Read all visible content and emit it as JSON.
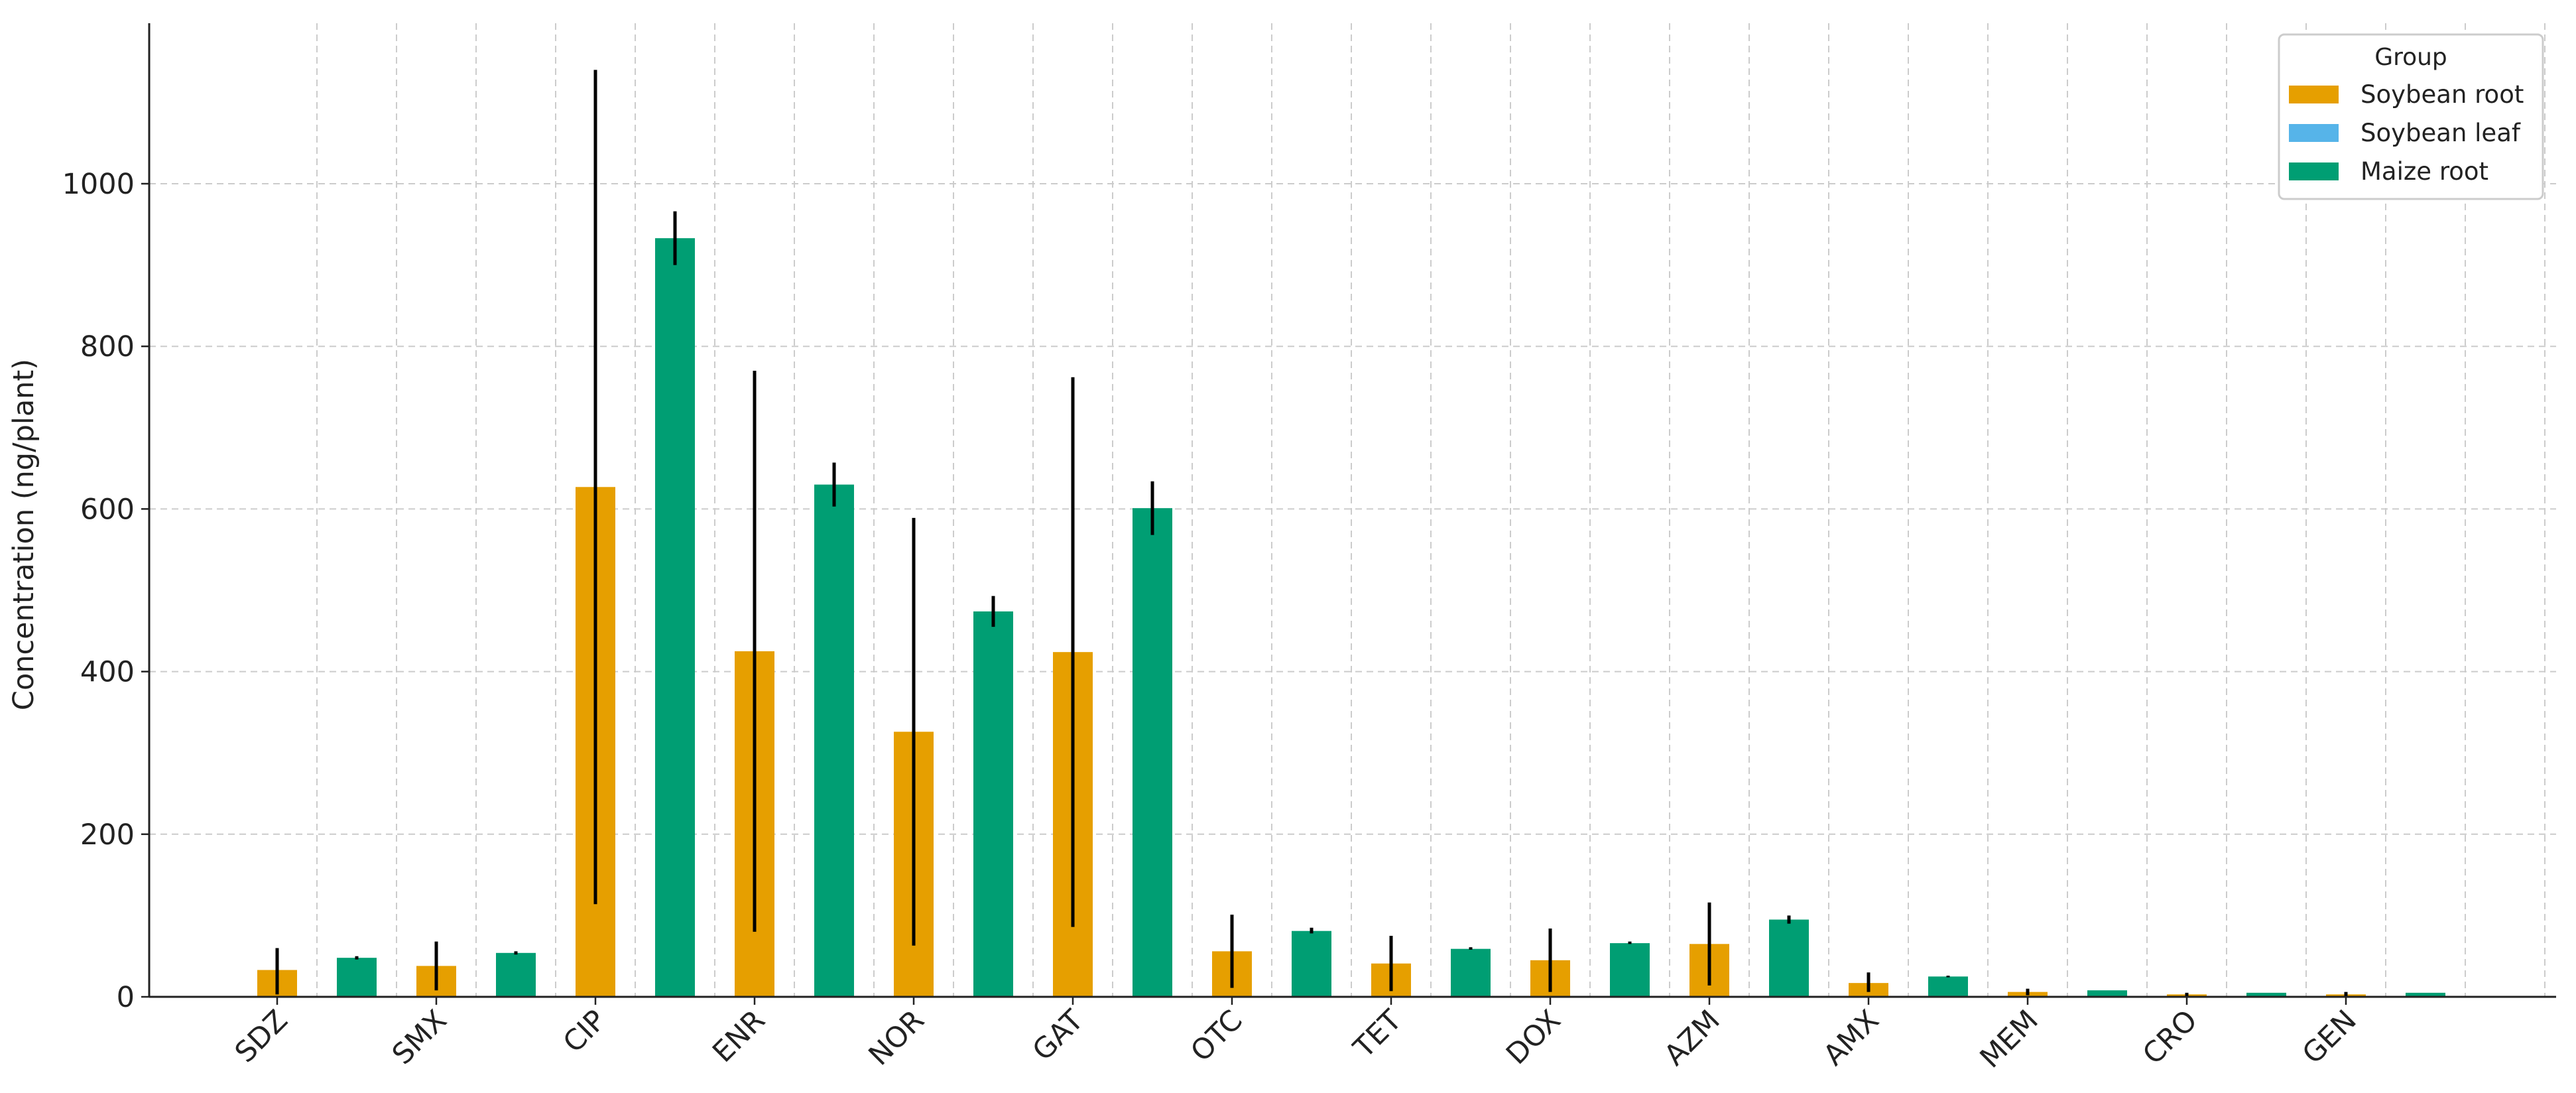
{
  "chart_data": {
    "type": "bar",
    "title": "",
    "xlabel": "",
    "ylabel": "Concentration (ng/plant)",
    "ylim": [
      0,
      1200
    ],
    "yticks": [
      0,
      200,
      400,
      600,
      800,
      1000
    ],
    "grid": true,
    "legend_position": "top-right",
    "legend_title": "Group",
    "series": [
      {
        "name": "Soybean root",
        "color": "#E69F00"
      },
      {
        "name": "Soybean leaf",
        "color": "#56B4E9"
      },
      {
        "name": "Maize root",
        "color": "#009E73"
      }
    ],
    "categories": [
      "SDZ",
      "SMX",
      "CIP",
      "ENR",
      "NOR",
      "GAT",
      "OTC",
      "TET",
      "DOX",
      "AZM",
      "AMX",
      "MEM",
      "CRO",
      "GEN"
    ],
    "bars": [
      {
        "series": "Soybean root",
        "category": "SDZ",
        "value": 33,
        "err_low": 3,
        "err_high": 60
      },
      {
        "series": "Maize root",
        "category": "SDZ",
        "value": 48,
        "err_low": 46,
        "err_high": 50
      },
      {
        "series": "Soybean root",
        "category": "SMX",
        "value": 38,
        "err_low": 8,
        "err_high": 68
      },
      {
        "series": "Maize root",
        "category": "SMX",
        "value": 54,
        "err_low": 52,
        "err_high": 56
      },
      {
        "series": "Soybean root",
        "category": "CIP",
        "value": 627,
        "err_low": 114,
        "err_high": 1140
      },
      {
        "series": "Maize root",
        "category": "CIP",
        "value": 933,
        "err_low": 900,
        "err_high": 966
      },
      {
        "series": "Soybean root",
        "category": "ENR",
        "value": 425,
        "err_low": 80,
        "err_high": 770
      },
      {
        "series": "Maize root",
        "category": "ENR",
        "value": 630,
        "err_low": 603,
        "err_high": 657
      },
      {
        "series": "Soybean root",
        "category": "NOR",
        "value": 326,
        "err_low": 63,
        "err_high": 589
      },
      {
        "series": "Maize root",
        "category": "NOR",
        "value": 474,
        "err_low": 455,
        "err_high": 493
      },
      {
        "series": "Soybean root",
        "category": "GAT",
        "value": 424,
        "err_low": 86,
        "err_high": 762
      },
      {
        "series": "Maize root",
        "category": "GAT",
        "value": 601,
        "err_low": 568,
        "err_high": 634
      },
      {
        "series": "Soybean root",
        "category": "OTC",
        "value": 56,
        "err_low": 11,
        "err_high": 101
      },
      {
        "series": "Maize root",
        "category": "OTC",
        "value": 81,
        "err_low": 78,
        "err_high": 85
      },
      {
        "series": "Soybean root",
        "category": "TET",
        "value": 41,
        "err_low": 7,
        "err_high": 75
      },
      {
        "series": "Maize root",
        "category": "TET",
        "value": 59,
        "err_low": 58,
        "err_high": 61
      },
      {
        "series": "Soybean root",
        "category": "DOX",
        "value": 45,
        "err_low": 6,
        "err_high": 84
      },
      {
        "series": "Maize root",
        "category": "DOX",
        "value": 66,
        "err_low": 65,
        "err_high": 68
      },
      {
        "series": "Soybean root",
        "category": "AZM",
        "value": 65,
        "err_low": 14,
        "err_high": 116
      },
      {
        "series": "Maize root",
        "category": "AZM",
        "value": 95,
        "err_low": 90,
        "err_high": 100
      },
      {
        "series": "Soybean root",
        "category": "AMX",
        "value": 17,
        "err_low": 6,
        "err_high": 30
      },
      {
        "series": "Maize root",
        "category": "AMX",
        "value": 25,
        "err_low": 24,
        "err_high": 26
      },
      {
        "series": "Soybean root",
        "category": "MEM",
        "value": 6,
        "err_low": 2,
        "err_high": 10
      },
      {
        "series": "Maize root",
        "category": "MEM",
        "value": 8,
        "err_low": 8,
        "err_high": 8
      },
      {
        "series": "Soybean root",
        "category": "CRO",
        "value": 3,
        "err_low": 1,
        "err_high": 5
      },
      {
        "series": "Maize root",
        "category": "CRO",
        "value": 5,
        "err_low": 5,
        "err_high": 5
      },
      {
        "series": "Soybean root",
        "category": "GEN",
        "value": 3,
        "err_low": 1,
        "err_high": 6
      },
      {
        "series": "Maize root",
        "category": "GEN",
        "value": 5,
        "err_low": 5,
        "err_high": 5
      }
    ]
  }
}
